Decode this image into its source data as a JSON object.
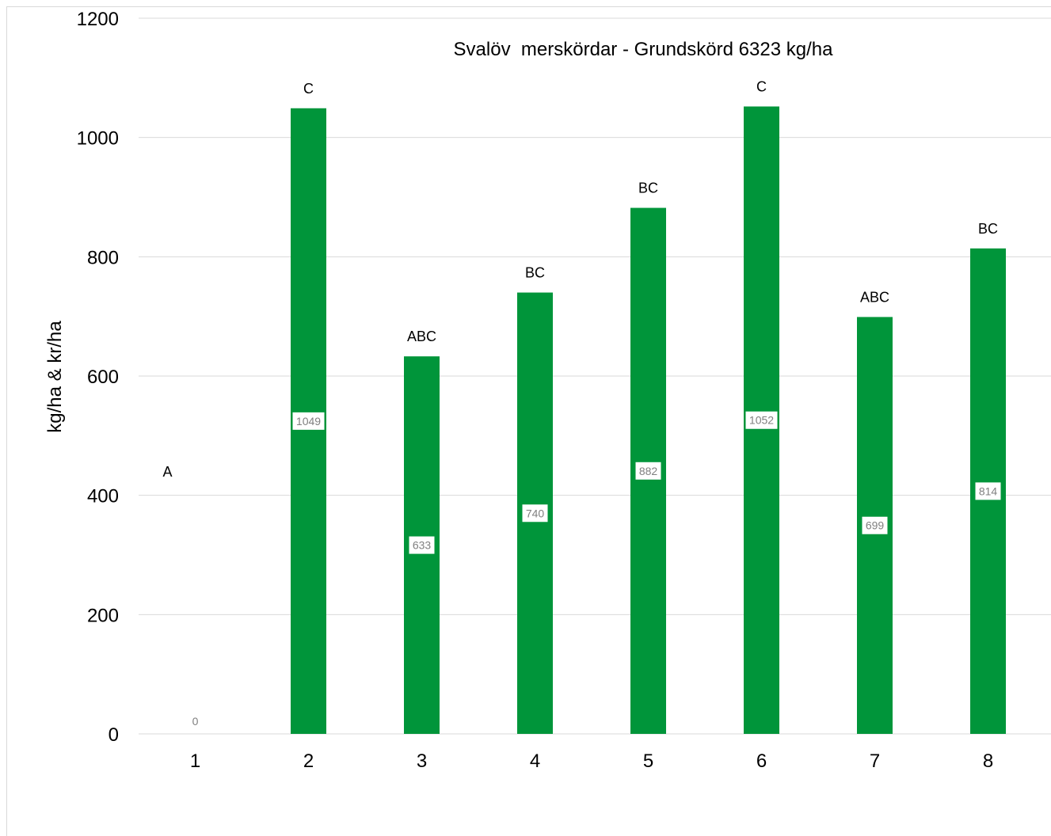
{
  "chart_data": {
    "type": "bar",
    "title": "Svalöv  merskördar - Grundskörd 6323 kg/ha",
    "xlabel": "",
    "ylabel": "kg/ha & kr/ha",
    "ylim": [
      0,
      1200
    ],
    "yticks": [
      0,
      200,
      400,
      600,
      800,
      1000,
      1200
    ],
    "grid": true,
    "categories": [
      "1",
      "2",
      "3",
      "4",
      "5",
      "6",
      "7",
      "8"
    ],
    "values": [
      0,
      1049,
      633,
      740,
      882,
      1052,
      699,
      814
    ],
    "value_labels": [
      "0",
      "1049",
      "633",
      "740",
      "882",
      "1052",
      "699",
      "814"
    ],
    "significance_letters": [
      "A",
      "C",
      "ABC",
      "BC",
      "BC",
      "C",
      "ABC",
      "BC"
    ],
    "bar_color": "#00953a"
  }
}
